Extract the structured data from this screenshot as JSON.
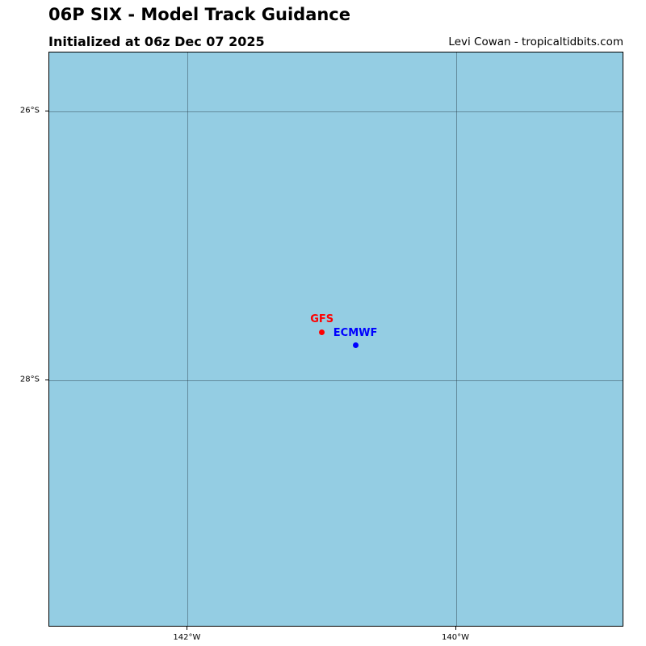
{
  "header": {
    "title": "06P SIX - Model Track Guidance",
    "subtitle": "Initialized at 06z Dec 07 2025",
    "credit": "Levi Cowan - tropicaltidbits.com"
  },
  "map": {
    "background_color": "#94cde3",
    "lon_range": [
      -143.03,
      -138.75
    ],
    "lat_range": [
      -29.84,
      -25.56
    ],
    "lon_gridlines": [
      {
        "value": -142,
        "label": "142°W"
      },
      {
        "value": -140,
        "label": "140°W"
      }
    ],
    "lat_gridlines": [
      {
        "value": -26,
        "label": "26°S"
      },
      {
        "value": -28,
        "label": "28°S"
      }
    ],
    "models": [
      {
        "name": "GFS",
        "color": "#ff0000",
        "lon": -141.0,
        "lat": -27.64
      },
      {
        "name": "ECMWF",
        "color": "#0000ff",
        "lon": -140.75,
        "lat": -27.74
      }
    ]
  }
}
